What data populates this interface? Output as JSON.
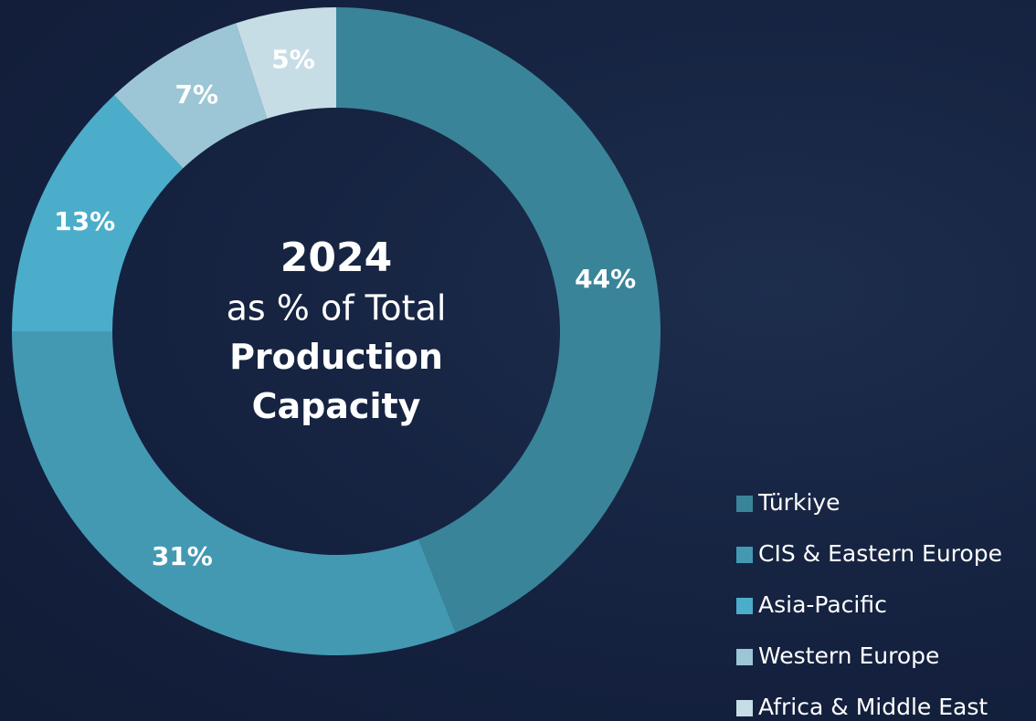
{
  "chart_data": {
    "type": "donut",
    "title": "2024",
    "subtitle": "as % of Total",
    "center_label": "Production Capacity",
    "categories": [
      "Türkiye",
      "CIS & Eastern Europe",
      "Asia-Pacific",
      "Western Europe",
      "Africa & Middle East"
    ],
    "values": [
      44,
      31,
      13,
      7,
      5
    ],
    "value_labels": [
      "44%",
      "31%",
      "13%",
      "7%",
      "5%"
    ],
    "colors": [
      "#3a8499",
      "#4499b2",
      "#4badc9",
      "#9cc6d6",
      "#c7dde6"
    ],
    "legend": "bottom-right"
  }
}
